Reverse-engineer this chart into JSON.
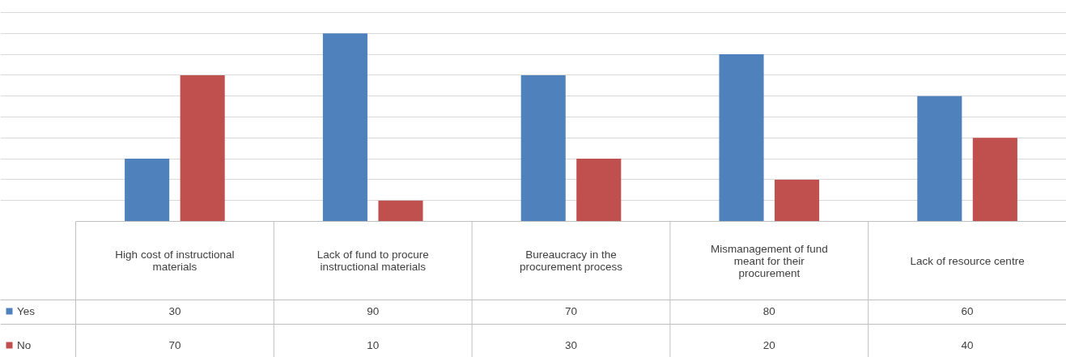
{
  "chart_data": {
    "type": "bar",
    "categories": [
      "High cost of instructional materials",
      "Lack of fund to procure instructional materials",
      "Bureaucracy in the procurement process",
      "Mismanagement of fund meant for their procurement",
      "Lack of resource centre"
    ],
    "series": [
      {
        "name": "Yes",
        "color": "#4f81bd",
        "values": [
          30,
          90,
          70,
          80,
          60
        ]
      },
      {
        "name": "No",
        "color": "#c0504d",
        "values": [
          70,
          10,
          30,
          20,
          40
        ]
      }
    ],
    "ylim": [
      0,
      100
    ],
    "yticks": [
      {
        "value": 10,
        "label": null
      },
      {
        "value": 20,
        "label": null
      },
      {
        "value": 30,
        "label": null
      },
      {
        "value": 40,
        "label": null
      },
      {
        "value": 50,
        "label": null
      },
      {
        "value": 60,
        "label": null
      },
      {
        "value": 70,
        "label": null
      },
      {
        "value": 80,
        "label": null
      },
      {
        "value": 90,
        "label": null
      },
      {
        "value": 100,
        "label": null
      }
    ],
    "grid": "y",
    "tick_labels": false,
    "data_labels": true,
    "legend": "bottom left"
  }
}
